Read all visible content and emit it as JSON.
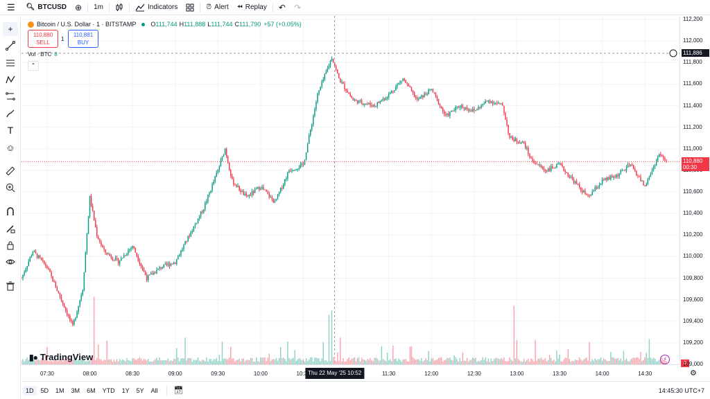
{
  "toolbar": {
    "menu_icon": "hamburger-icon",
    "symbol": "BTCUSD",
    "interval": "1m",
    "indicators_label": "Indicators",
    "alert_label": "Alert",
    "replay_label": "Replay"
  },
  "legend": {
    "title": "Bitcoin / U.S. Dollar · 1 · BITSTAMP",
    "open_label": "O",
    "open": "111,744",
    "high_label": "H",
    "high": "111,888",
    "low_label": "L",
    "low": "111,744",
    "close_label": "C",
    "close": "111,790",
    "change": "+57 (+0.05%)",
    "sell_price": "110,880",
    "sell_label": "SELL",
    "spread": "1",
    "buy_price": "110,881",
    "buy_label": "BUY",
    "volume_label": "Vol · BTC",
    "volume_value": "8"
  },
  "price_scale": {
    "labels": [
      "112,200",
      "112,000",
      "111,800",
      "111,600",
      "111,400",
      "111,200",
      "111,000",
      "110,800",
      "110,600",
      "110,400",
      "110,200",
      "110,000",
      "109,800",
      "109,600",
      "109,400",
      "109,200",
      "109,000"
    ],
    "crosshair_price": "111,886",
    "last_price": "110,880",
    "countdown": "00:30",
    "volume_zero": "0"
  },
  "time_scale": {
    "labels": [
      "07:30",
      "08:00",
      "08:30",
      "09:00",
      "09:30",
      "10:00",
      "10:30",
      "11:00",
      "11:30",
      "12:00",
      "12:30",
      "13:00",
      "13:30",
      "14:00",
      "14:30"
    ],
    "crosshair_time": "Thu 22 May '25   10:52"
  },
  "bottom": {
    "ranges": [
      "1D",
      "5D",
      "1M",
      "3M",
      "6M",
      "YTD",
      "1Y",
      "5Y",
      "All"
    ],
    "active_range": "1D",
    "clock": "14:45:30 UTC+7"
  },
  "brand": "TradingView",
  "colors": {
    "up": "#089981",
    "down": "#f23645",
    "accent": "#2962ff"
  },
  "chart_data": {
    "type": "candlestick",
    "title": "Bitcoin / U.S. Dollar · 1 · BITSTAMP",
    "interval": "1m",
    "ylim": [
      109000,
      112200
    ],
    "x_ticks": [
      "07:30",
      "08:00",
      "08:30",
      "09:00",
      "09:30",
      "10:00",
      "10:30",
      "11:00",
      "11:30",
      "12:00",
      "12:30",
      "13:00",
      "13:30",
      "14:00",
      "14:30"
    ],
    "start_time": "07:12",
    "end_time": "14:45",
    "close_path": [
      [
        "07:12",
        109800
      ],
      [
        "07:20",
        110050
      ],
      [
        "07:30",
        109900
      ],
      [
        "07:40",
        109600
      ],
      [
        "07:48",
        109350
      ],
      [
        "07:55",
        109700
      ],
      [
        "08:00",
        110550
      ],
      [
        "08:05",
        110200
      ],
      [
        "08:10",
        110050
      ],
      [
        "08:20",
        109950
      ],
      [
        "08:30",
        110100
      ],
      [
        "08:40",
        109800
      ],
      [
        "08:50",
        109900
      ],
      [
        "09:00",
        109950
      ],
      [
        "09:10",
        110200
      ],
      [
        "09:20",
        110450
      ],
      [
        "09:30",
        110800
      ],
      [
        "09:35",
        111000
      ],
      [
        "09:40",
        110700
      ],
      [
        "09:50",
        110550
      ],
      [
        "10:00",
        110650
      ],
      [
        "10:10",
        110500
      ],
      [
        "10:20",
        110800
      ],
      [
        "10:30",
        110850
      ],
      [
        "10:40",
        111500
      ],
      [
        "10:50",
        111850
      ],
      [
        "10:55",
        111650
      ],
      [
        "11:05",
        111450
      ],
      [
        "11:20",
        111400
      ],
      [
        "11:30",
        111500
      ],
      [
        "11:40",
        111650
      ],
      [
        "11:50",
        111450
      ],
      [
        "12:00",
        111550
      ],
      [
        "12:10",
        111300
      ],
      [
        "12:20",
        111400
      ],
      [
        "12:30",
        111350
      ],
      [
        "12:40",
        111450
      ],
      [
        "12:50",
        111400
      ],
      [
        "12:55",
        111100
      ],
      [
        "13:05",
        111050
      ],
      [
        "13:10",
        110900
      ],
      [
        "13:20",
        110800
      ],
      [
        "13:30",
        110850
      ],
      [
        "13:40",
        110700
      ],
      [
        "13:50",
        110550
      ],
      [
        "14:00",
        110700
      ],
      [
        "14:10",
        110750
      ],
      [
        "14:20",
        110850
      ],
      [
        "14:30",
        110650
      ],
      [
        "14:40",
        110950
      ],
      [
        "14:45",
        110880
      ]
    ]
  }
}
